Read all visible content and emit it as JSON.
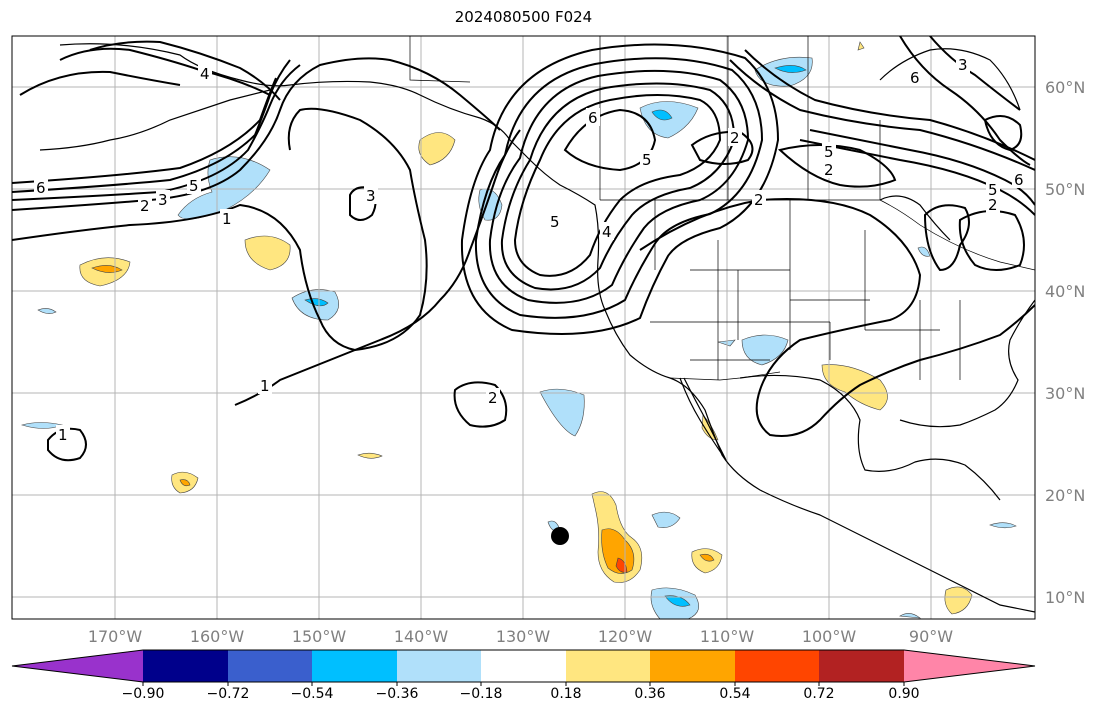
{
  "title": "2024080500 F024",
  "latitude_labels": [
    "60°N",
    "50°N",
    "40°N",
    "30°N",
    "20°N",
    "10°N"
  ],
  "longitude_labels": [
    "170°W",
    "160°W",
    "150°W",
    "140°W",
    "130°W",
    "120°W",
    "110°W",
    "100°W",
    "90°W"
  ],
  "colorbar": {
    "ticks": [
      "−0.90",
      "−0.72",
      "−0.54",
      "−0.36",
      "−0.18",
      "0.18",
      "0.36",
      "0.54",
      "0.72",
      "0.90"
    ],
    "colors": [
      "#9932cc",
      "#00008b",
      "#3a5fcd",
      "#00bfff",
      "#b0e0fa",
      "#ffffff",
      "#ffe680",
      "#ffa500",
      "#ff4500",
      "#b22222",
      "#ff85a8"
    ]
  },
  "contour_labels": [
    "4",
    "6",
    "2",
    "3",
    "5",
    "1",
    "3",
    "2",
    "6",
    "5",
    "2",
    "2",
    "5",
    "2",
    "5",
    "3",
    "6",
    "6",
    "5",
    "4",
    "1",
    "2",
    "1"
  ]
}
